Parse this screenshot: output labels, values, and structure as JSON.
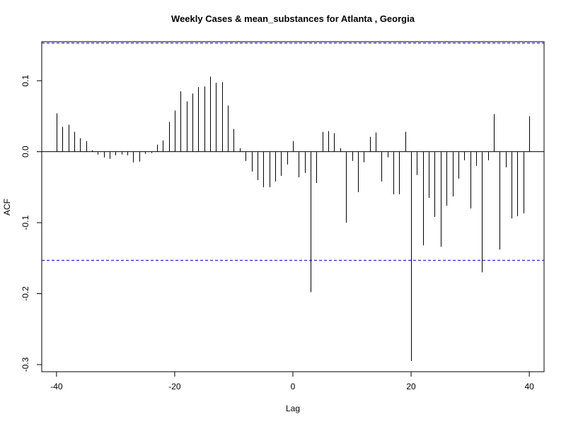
{
  "chart_data": {
    "type": "bar",
    "title": "Weekly Cases & mean_substances for Atlanta , Georgia",
    "xlabel": "Lag",
    "ylabel": "ACF",
    "xlim": [
      -42.5,
      42.5
    ],
    "ylim": [
      -0.31,
      0.155
    ],
    "x_ticks": [
      -40,
      -20,
      0,
      20,
      40
    ],
    "x_tick_labels": [
      "-40",
      "-20",
      "0",
      "20",
      "40"
    ],
    "y_ticks": [
      -0.3,
      -0.2,
      -0.1,
      0.0,
      0.1
    ],
    "y_tick_labels": [
      "-0.3",
      "-0.2",
      "-0.1",
      "0.0",
      "0.1"
    ],
    "confidence_limit": 0.153,
    "confidence_color": "#0000cd",
    "bar_color": "#000000",
    "grid": false,
    "x": [
      -40,
      -39,
      -38,
      -37,
      -36,
      -35,
      -34,
      -33,
      -32,
      -31,
      -30,
      -29,
      -28,
      -27,
      -26,
      -25,
      -24,
      -23,
      -22,
      -21,
      -20,
      -19,
      -18,
      -17,
      -16,
      -15,
      -14,
      -13,
      -12,
      -11,
      -10,
      -9,
      -8,
      -7,
      -6,
      -5,
      -4,
      -3,
      -2,
      -1,
      0,
      1,
      2,
      3,
      4,
      5,
      6,
      7,
      8,
      9,
      10,
      11,
      12,
      13,
      14,
      15,
      16,
      17,
      18,
      19,
      20,
      21,
      22,
      23,
      24,
      25,
      26,
      27,
      28,
      29,
      30,
      31,
      32,
      33,
      34,
      35,
      36,
      37,
      38,
      39,
      40
    ],
    "values": [
      0.054,
      0.035,
      0.038,
      0.028,
      0.019,
      0.015,
      0.002,
      -0.004,
      -0.008,
      -0.01,
      -0.005,
      -0.004,
      -0.005,
      -0.015,
      -0.014,
      -0.003,
      -0.002,
      0.01,
      0.016,
      0.042,
      0.058,
      0.085,
      0.071,
      0.082,
      0.091,
      0.092,
      0.106,
      0.097,
      0.098,
      0.065,
      0.032,
      0.005,
      -0.013,
      -0.028,
      -0.04,
      -0.05,
      -0.05,
      -0.042,
      -0.034,
      -0.018,
      0.015,
      -0.036,
      -0.03,
      -0.198,
      -0.044,
      0.028,
      0.029,
      0.026,
      0.005,
      -0.1,
      -0.013,
      -0.057,
      -0.015,
      0.021,
      0.027,
      -0.042,
      -0.008,
      -0.06,
      -0.06,
      0.028,
      -0.295,
      -0.033,
      -0.132,
      -0.065,
      -0.092,
      -0.134,
      -0.076,
      -0.063,
      -0.038,
      -0.012,
      -0.08,
      -0.02,
      -0.17,
      -0.012,
      0.053,
      -0.138,
      -0.022,
      -0.094,
      -0.091,
      -0.087,
      0.05
    ]
  }
}
